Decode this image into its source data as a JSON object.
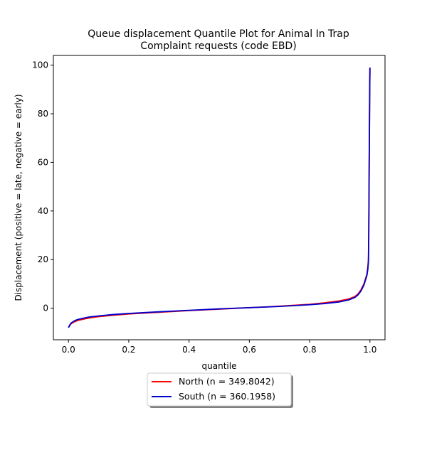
{
  "chart_data": {
    "type": "line",
    "title_lines": [
      "Queue displacement Quantile Plot for Animal In Trap",
      "Complaint  requests (code EBD)"
    ],
    "xlabel": "quantile",
    "ylabel": "Displacement (positive = late, negative = early)",
    "xlim": [
      -0.05,
      1.05
    ],
    "ylim": [
      -13,
      104
    ],
    "xticks": [
      0.0,
      0.2,
      0.4,
      0.6,
      0.8,
      1.0
    ],
    "xtick_labels": [
      "0.0",
      "0.2",
      "0.4",
      "0.6",
      "0.8",
      "1.0"
    ],
    "yticks": [
      0,
      20,
      40,
      60,
      80,
      100
    ],
    "ytick_labels": [
      "0",
      "20",
      "40",
      "60",
      "80",
      "100"
    ],
    "grid": false,
    "legend_position": "below the plot, centered",
    "series": [
      {
        "name": "North (n = 349.8042)",
        "color": "#ff0000",
        "x": [
          0.0,
          0.005,
          0.01,
          0.02,
          0.03,
          0.05,
          0.07,
          0.1,
          0.15,
          0.2,
          0.3,
          0.4,
          0.5,
          0.6,
          0.7,
          0.8,
          0.85,
          0.9,
          0.93,
          0.95,
          0.96,
          0.97,
          0.98,
          0.985,
          0.99,
          0.993,
          0.995,
          0.996,
          0.997,
          0.998,
          0.999,
          1.0
        ],
        "y": [
          -8.0,
          -7.0,
          -6.3,
          -5.6,
          -5.1,
          -4.5,
          -4.0,
          -3.5,
          -2.9,
          -2.4,
          -1.7,
          -1.0,
          -0.4,
          0.2,
          0.8,
          1.6,
          2.2,
          3.0,
          3.8,
          4.8,
          5.8,
          7.5,
          10.0,
          12.0,
          14.0,
          17.0,
          20.0,
          30.0,
          50.0,
          70.0,
          85.0,
          99.0
        ]
      },
      {
        "name": "South (n = 360.1958)",
        "color": "#0000cc",
        "x": [
          0.0,
          0.005,
          0.01,
          0.02,
          0.03,
          0.05,
          0.07,
          0.1,
          0.15,
          0.2,
          0.3,
          0.4,
          0.5,
          0.6,
          0.7,
          0.8,
          0.85,
          0.9,
          0.93,
          0.95,
          0.96,
          0.97,
          0.98,
          0.985,
          0.99,
          0.993,
          0.995,
          0.996,
          0.997,
          0.998,
          0.999,
          1.0
        ],
        "y": [
          -8.0,
          -6.8,
          -6.0,
          -5.2,
          -4.7,
          -4.1,
          -3.6,
          -3.2,
          -2.6,
          -2.2,
          -1.5,
          -0.9,
          -0.3,
          0.2,
          0.7,
          1.4,
          1.9,
          2.6,
          3.4,
          4.4,
          5.4,
          7.0,
          9.5,
          11.5,
          13.5,
          16.0,
          19.0,
          28.0,
          48.0,
          68.0,
          86.0,
          99.0
        ]
      }
    ]
  }
}
